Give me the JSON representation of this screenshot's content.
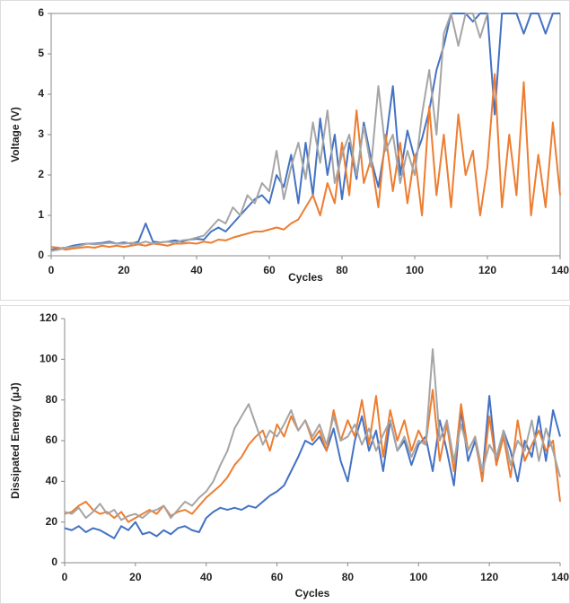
{
  "chart_data": [
    {
      "type": "line",
      "y_label": "Voltage (V)",
      "x_label": "Cycles",
      "xlim": [
        0,
        140
      ],
      "xticks": [
        0,
        20,
        40,
        60,
        80,
        100,
        120,
        140
      ],
      "ylim": [
        0,
        6
      ],
      "yticks": [
        0,
        1,
        2,
        3,
        4,
        5,
        6
      ],
      "x": [
        0,
        2,
        4,
        6,
        8,
        10,
        12,
        14,
        16,
        18,
        20,
        22,
        24,
        26,
        28,
        30,
        32,
        34,
        36,
        38,
        40,
        42,
        44,
        46,
        48,
        50,
        52,
        54,
        56,
        58,
        60,
        62,
        64,
        66,
        68,
        70,
        72,
        74,
        76,
        78,
        80,
        82,
        84,
        86,
        88,
        90,
        92,
        94,
        96,
        98,
        100,
        102,
        104,
        106,
        108,
        110,
        112,
        114,
        116,
        118,
        120,
        122,
        124,
        126,
        128,
        130,
        132,
        134,
        136,
        138,
        140
      ],
      "series": [
        {
          "color": "#4472c4",
          "values": [
            0.15,
            0.18,
            0.2,
            0.25,
            0.28,
            0.3,
            0.3,
            0.32,
            0.35,
            0.3,
            0.33,
            0.3,
            0.35,
            0.8,
            0.35,
            0.33,
            0.35,
            0.38,
            0.35,
            0.4,
            0.42,
            0.4,
            0.6,
            0.7,
            0.6,
            0.8,
            1.0,
            1.2,
            1.4,
            1.5,
            1.3,
            2.0,
            1.7,
            2.5,
            1.3,
            2.8,
            1.5,
            3.4,
            2.0,
            3.0,
            1.4,
            2.8,
            1.9,
            3.3,
            2.4,
            1.7,
            2.8,
            4.2,
            2.0,
            3.1,
            2.4,
            2.9,
            3.6,
            4.6,
            5.2,
            6,
            6,
            6,
            5.8,
            6,
            6,
            3.5,
            6,
            6,
            6,
            5.5,
            6,
            6,
            5.5,
            6,
            6
          ]
        },
        {
          "color": "#ed7d31",
          "values": [
            0.22,
            0.2,
            0.15,
            0.18,
            0.2,
            0.22,
            0.2,
            0.25,
            0.22,
            0.25,
            0.22,
            0.25,
            0.28,
            0.25,
            0.3,
            0.28,
            0.25,
            0.3,
            0.3,
            0.32,
            0.3,
            0.35,
            0.32,
            0.4,
            0.38,
            0.45,
            0.5,
            0.55,
            0.6,
            0.6,
            0.65,
            0.7,
            0.65,
            0.8,
            0.9,
            1.2,
            1.5,
            1.0,
            1.8,
            1.3,
            2.8,
            1.5,
            3.6,
            1.8,
            2.4,
            1.2,
            3.0,
            1.6,
            2.8,
            1.3,
            2.5,
            1.0,
            3.7,
            1.5,
            3.0,
            1.2,
            3.5,
            2.0,
            2.6,
            1.0,
            2.2,
            4.5,
            1.2,
            3.0,
            1.5,
            4.3,
            1.0,
            2.5,
            1.2,
            3.3,
            1.5
          ]
        },
        {
          "color": "#a5a5a5",
          "values": [
            0.12,
            0.15,
            0.2,
            0.22,
            0.25,
            0.3,
            0.28,
            0.3,
            0.32,
            0.3,
            0.3,
            0.32,
            0.3,
            0.35,
            0.3,
            0.33,
            0.35,
            0.32,
            0.38,
            0.4,
            0.45,
            0.5,
            0.7,
            0.9,
            0.8,
            1.2,
            1.0,
            1.5,
            1.3,
            1.8,
            1.6,
            2.6,
            1.4,
            2.2,
            2.8,
            1.9,
            3.3,
            2.3,
            3.6,
            1.8,
            2.5,
            3.0,
            2.0,
            3.2,
            2.2,
            4.2,
            2.6,
            3.0,
            1.8,
            2.6,
            2.0,
            3.5,
            4.6,
            3.0,
            5.5,
            6,
            5.2,
            6,
            6,
            5.4,
            6,
            null,
            null,
            null,
            null,
            null,
            null,
            null,
            null,
            null,
            null
          ]
        }
      ]
    },
    {
      "type": "line",
      "y_label": "Dissipated Energy (µJ)",
      "x_label": "Cycles",
      "xlim": [
        0,
        140
      ],
      "xticks": [
        0,
        20,
        40,
        60,
        80,
        100,
        120,
        140
      ],
      "ylim": [
        0,
        120
      ],
      "yticks": [
        0,
        20,
        40,
        60,
        80,
        100,
        120
      ],
      "x": [
        0,
        2,
        4,
        6,
        8,
        10,
        12,
        14,
        16,
        18,
        20,
        22,
        24,
        26,
        28,
        30,
        32,
        34,
        36,
        38,
        40,
        42,
        44,
        46,
        48,
        50,
        52,
        54,
        56,
        58,
        60,
        62,
        64,
        66,
        68,
        70,
        72,
        74,
        76,
        78,
        80,
        82,
        84,
        86,
        88,
        90,
        92,
        94,
        96,
        98,
        100,
        102,
        104,
        106,
        108,
        110,
        112,
        114,
        116,
        118,
        120,
        122,
        124,
        126,
        128,
        130,
        132,
        134,
        136,
        138,
        140
      ],
      "series": [
        {
          "color": "#4472c4",
          "values": [
            17,
            16,
            18,
            15,
            17,
            16,
            14,
            12,
            18,
            16,
            20,
            14,
            15,
            13,
            16,
            14,
            17,
            18,
            16,
            15,
            22,
            25,
            27,
            26,
            27,
            26,
            28,
            27,
            30,
            33,
            35,
            38,
            45,
            52,
            60,
            58,
            62,
            55,
            66,
            50,
            40,
            60,
            72,
            55,
            65,
            45,
            70,
            55,
            60,
            48,
            58,
            62,
            45,
            70,
            55,
            38,
            75,
            50,
            60,
            42,
            82,
            48,
            65,
            55,
            40,
            60,
            52,
            72,
            50,
            75,
            62
          ]
        },
        {
          "color": "#ed7d31",
          "values": [
            24,
            25,
            28,
            30,
            26,
            24,
            25,
            22,
            25,
            20,
            22,
            24,
            26,
            24,
            28,
            23,
            25,
            26,
            24,
            28,
            32,
            35,
            38,
            42,
            48,
            52,
            58,
            62,
            65,
            55,
            68,
            62,
            72,
            65,
            70,
            60,
            65,
            55,
            75,
            60,
            70,
            62,
            80,
            58,
            82,
            52,
            75,
            60,
            70,
            55,
            65,
            58,
            85,
            50,
            68,
            45,
            78,
            55,
            62,
            40,
            72,
            48,
            62,
            42,
            70,
            50,
            58,
            65,
            55,
            60,
            30
          ]
        },
        {
          "color": "#a5a5a5",
          "values": [
            25,
            24,
            27,
            22,
            25,
            29,
            24,
            26,
            21,
            23,
            24,
            22,
            25,
            26,
            28,
            22,
            26,
            30,
            28,
            32,
            35,
            40,
            48,
            55,
            66,
            72,
            78,
            68,
            58,
            65,
            62,
            68,
            75,
            65,
            70,
            62,
            68,
            58,
            72,
            60,
            62,
            68,
            58,
            66,
            55,
            63,
            70,
            55,
            62,
            52,
            60,
            58,
            105,
            60,
            70,
            50,
            68,
            55,
            62,
            45,
            58,
            52,
            65,
            48,
            60,
            55,
            70,
            50,
            66,
            55,
            42
          ]
        }
      ]
    }
  ]
}
